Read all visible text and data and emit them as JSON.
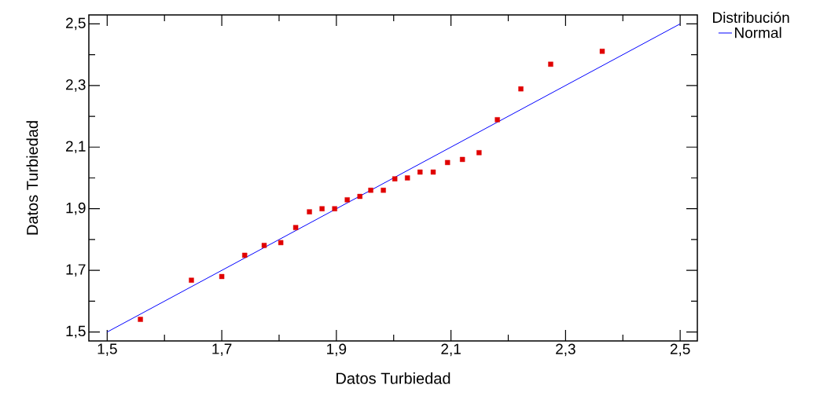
{
  "chart_data": {
    "type": "scatter",
    "xlabel": "Datos Turbiedad",
    "ylabel": "Datos Turbiedad",
    "legend_title": "Distribución",
    "xlim": [
      1.468,
      2.53
    ],
    "ylim": [
      1.471,
      2.529
    ],
    "xticks": [
      {
        "value": 1.5,
        "label": "1,5"
      },
      {
        "value": 1.7,
        "label": "1,7"
      },
      {
        "value": 1.9,
        "label": "1,9"
      },
      {
        "value": 2.1,
        "label": "2,1"
      },
      {
        "value": 2.3,
        "label": "2,3"
      },
      {
        "value": 2.5,
        "label": "2,5"
      }
    ],
    "yticks": [
      {
        "value": 1.5,
        "label": "1,5"
      },
      {
        "value": 1.7,
        "label": "1,7"
      },
      {
        "value": 1.9,
        "label": "1,9"
      },
      {
        "value": 2.1,
        "label": "2,1"
      },
      {
        "value": 2.3,
        "label": "2,3"
      },
      {
        "value": 2.5,
        "label": "2,5"
      }
    ],
    "legend": "top right",
    "series": [
      {
        "color": "#e00000",
        "marker": "square",
        "x": [
          1.558,
          1.647,
          1.7,
          1.74,
          1.774,
          1.803,
          1.829,
          1.853,
          1.875,
          1.897,
          1.919,
          1.941,
          1.96,
          1.982,
          2.002,
          2.024,
          2.046,
          2.069,
          2.094,
          2.12,
          2.149,
          2.181,
          2.222,
          2.274,
          2.364
        ],
        "values": [
          1.541,
          1.668,
          1.68,
          1.749,
          1.781,
          1.79,
          1.839,
          1.89,
          1.9,
          1.9,
          1.929,
          1.94,
          1.96,
          1.96,
          1.997,
          2.0,
          2.019,
          2.019,
          2.05,
          2.06,
          2.082,
          2.189,
          2.289,
          2.369,
          2.411
        ]
      },
      {
        "type": "line",
        "name": "Normal",
        "color": "#0000ff",
        "marker": "none",
        "line_style": "solid",
        "x": [
          1.5,
          2.5
        ],
        "values": [
          1.5,
          2.5
        ]
      }
    ]
  }
}
